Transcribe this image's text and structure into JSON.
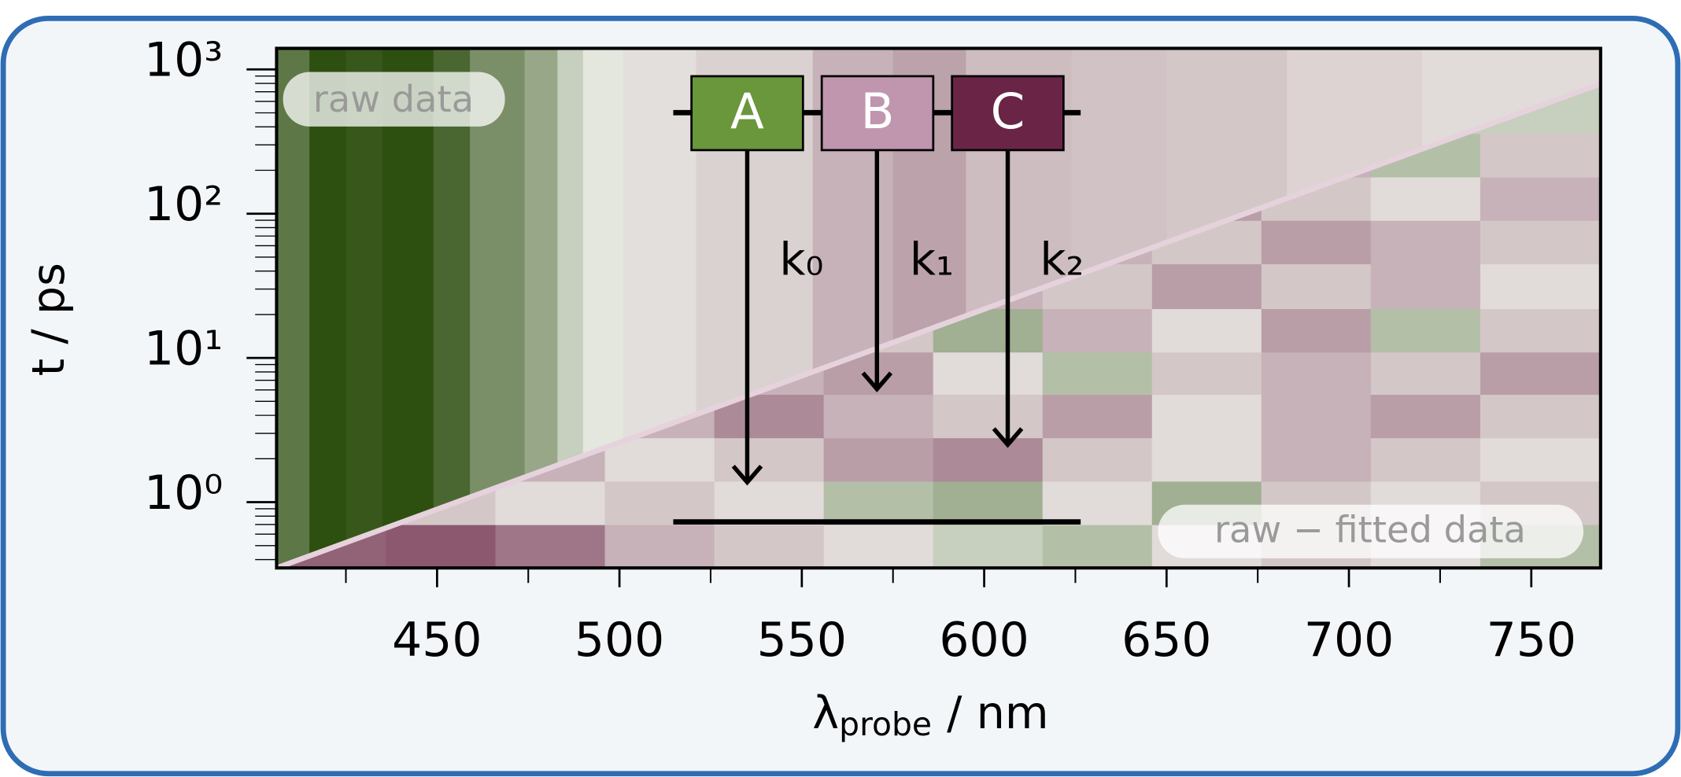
{
  "chart_data": {
    "type": "heatmap",
    "x_label": {
      "symbol": "λ",
      "subscript": "probe",
      "unit": "/ nm"
    },
    "y_label": "t / ps",
    "xlim": [
      406,
      769
    ],
    "ylim": [
      0.35,
      1400
    ],
    "log_y": true,
    "xticks": [
      450,
      500,
      550,
      600,
      650,
      700,
      750
    ],
    "xminor": [
      425,
      475,
      525,
      575,
      625,
      675,
      725
    ],
    "yticks": [
      {
        "value": 1,
        "label": "10⁰"
      },
      {
        "value": 10,
        "label": "10¹"
      },
      {
        "value": 100,
        "label": "10²"
      },
      {
        "value": 1000,
        "label": "10³"
      }
    ],
    "yminor": [
      0.4,
      0.5,
      0.6,
      0.7,
      0.8,
      0.9,
      2,
      3,
      4,
      5,
      6,
      7,
      8,
      9,
      20,
      30,
      40,
      50,
      60,
      70,
      80,
      90,
      200,
      300,
      400,
      500,
      600,
      700,
      800,
      900
    ],
    "colors": {
      "negative": "#2d4f10",
      "zero": "#eeefe9",
      "positive": "#6a2546"
    },
    "raw": {
      "label": "raw data",
      "bins": [
        406,
        415,
        425,
        435,
        449,
        459,
        474,
        483,
        490,
        501,
        521,
        553,
        575,
        595,
        624,
        650,
        683,
        720,
        769
      ],
      "values": [
        -0.75,
        -1,
        -0.95,
        -1,
        -0.85,
        -0.6,
        -0.45,
        -0.2,
        -0.05,
        0.08,
        0.15,
        0.3,
        0.38,
        0.25,
        0.22,
        0.2,
        0.14,
        0.1
      ]
    },
    "residual": {
      "label": "raw − fitted data",
      "x_bins": [
        406,
        436,
        466,
        496,
        526,
        556,
        586,
        616,
        646,
        676,
        706,
        736,
        769
      ],
      "t_bins": [
        0.35,
        0.7,
        1.4,
        2.8,
        5.6,
        11,
        22,
        45,
        90,
        180,
        360,
        1400
      ],
      "values": [
        [
          0.7,
          0.75,
          0.6,
          0.3,
          0.2,
          0.1,
          -0.2,
          -0.3,
          0.1,
          0.2,
          0.1,
          -0.3
        ],
        [
          0.3,
          0.2,
          0.1,
          0.2,
          0.1,
          -0.3,
          -0.4,
          0.1,
          -0.4,
          0.2,
          0.1,
          0.2
        ],
        [
          0.1,
          0.2,
          0.3,
          0.1,
          0.2,
          0.4,
          0.5,
          0.2,
          0.1,
          0.3,
          0.2,
          0.1
        ],
        [
          0.1,
          0.2,
          0.1,
          0.3,
          0.5,
          0.3,
          0.2,
          0.4,
          0.1,
          0.3,
          0.4,
          0.2
        ],
        [
          0.1,
          0.1,
          0.2,
          0.1,
          0.3,
          0.4,
          0.1,
          -0.3,
          0.2,
          0.3,
          0.2,
          0.4
        ],
        [
          0.1,
          0.1,
          0.1,
          -0.2,
          0.3,
          0.2,
          -0.4,
          0.3,
          0.1,
          0.4,
          -0.3,
          0.2
        ],
        [
          0.1,
          0.1,
          0.1,
          0.1,
          -0.3,
          0.2,
          0.3,
          0.2,
          0.4,
          0.2,
          0.3,
          0.1
        ],
        [
          0.1,
          0.1,
          0.1,
          0.1,
          0.1,
          0.2,
          0.1,
          0.3,
          0.2,
          0.4,
          0.3,
          0.2
        ],
        [
          0.1,
          0.1,
          0.1,
          0.1,
          0.1,
          0.1,
          0.2,
          -0.3,
          0.4,
          0.2,
          0.1,
          0.3
        ],
        [
          0.1,
          0.1,
          0.1,
          0.1,
          0.1,
          0.1,
          0.1,
          0.1,
          -0.3,
          0.3,
          -0.3,
          0.2
        ],
        [
          0.1,
          0.1,
          0.1,
          0.1,
          0.1,
          0.1,
          0.1,
          0.1,
          0.1,
          0.1,
          -0.2,
          -0.2
        ]
      ]
    },
    "scheme": {
      "states": [
        {
          "label": "A",
          "color": "#6a963c"
        },
        {
          "label": "B",
          "color": "#c096ae"
        },
        {
          "label": "C",
          "color": "#6a2546"
        }
      ],
      "rates": [
        "k₀",
        "k₁",
        "k₂"
      ]
    }
  }
}
